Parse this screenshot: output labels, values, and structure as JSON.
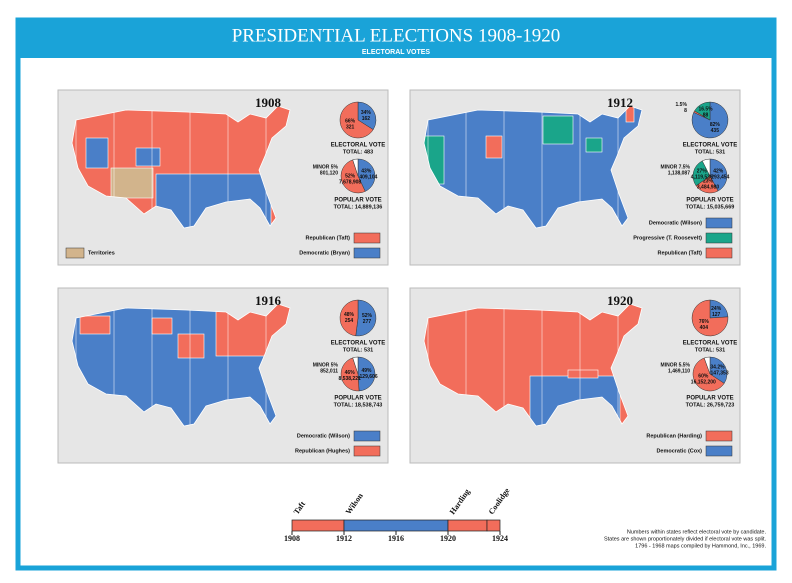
{
  "header": {
    "title": "PRESIDENTIAL ELECTIONS 1908-1920",
    "subtitle": "ELECTORAL VOTES"
  },
  "panels": [
    {
      "title": "1908",
      "electoral": {
        "label": "ELECTORAL VOTE",
        "total": "TOTAL: 483",
        "slices": [
          {
            "value": 34,
            "label": "34%",
            "count": "162",
            "color": "#4a7fc8"
          },
          {
            "value": 66,
            "label": "66%",
            "count": "321",
            "color": "#f26d5b"
          }
        ]
      },
      "popular": {
        "label": "POPULAR VOTE",
        "total": "TOTAL: 14,889,136",
        "slices": [
          {
            "value": 43,
            "label": "43%",
            "count": "6,409,104",
            "color": "#4a7fc8"
          },
          {
            "value": 52,
            "label": "52%",
            "count": "7,678,908",
            "color": "#f26d5b"
          },
          {
            "value": 5,
            "label": "MINOR 5%",
            "count": "801,120",
            "color": "#ffffff"
          }
        ]
      },
      "legend": [
        {
          "label": "Republican (Taft)",
          "color": "#f26d5b"
        },
        {
          "label": "Democratic (Bryan)",
          "color": "#4a7fc8"
        }
      ],
      "territories": {
        "label": "Territories",
        "color": "#d2b48c"
      }
    },
    {
      "title": "1912",
      "electoral": {
        "label": "ELECTORAL VOTE",
        "total": "TOTAL: 531",
        "slices": [
          {
            "value": 82,
            "label": "82%",
            "count": "435",
            "color": "#4a7fc8"
          },
          {
            "value": 1.5,
            "label": "1.5%",
            "count": "8",
            "color": "#f26d5b"
          },
          {
            "value": 16.5,
            "label": "16.5%",
            "count": "88",
            "color": "#1aa58a"
          }
        ]
      },
      "popular": {
        "label": "POPULAR VOTE",
        "total": "TOTAL: 15,035,669",
        "slices": [
          {
            "value": 42,
            "label": "42%",
            "count": "6,293,454",
            "color": "#4a7fc8"
          },
          {
            "value": 23,
            "label": "23%",
            "count": "3,484,980",
            "color": "#f26d5b"
          },
          {
            "value": 27,
            "label": "27%",
            "count": "4,119,538",
            "color": "#1aa58a"
          },
          {
            "value": 7.5,
            "label": "MINOR 7.5%",
            "count": "1,138,087",
            "color": "#ffffff"
          }
        ]
      },
      "legend": [
        {
          "label": "Democratic (Wilson)",
          "color": "#4a7fc8"
        },
        {
          "label": "Progressive (T. Roosevelt)",
          "color": "#1aa58a"
        },
        {
          "label": "Republican (Taft)",
          "color": "#f26d5b"
        }
      ]
    },
    {
      "title": "1916",
      "electoral": {
        "label": "ELECTORAL VOTE",
        "total": "TOTAL: 531",
        "slices": [
          {
            "value": 52,
            "label": "52%",
            "count": "277",
            "color": "#4a7fc8"
          },
          {
            "value": 48,
            "label": "48%",
            "count": "254",
            "color": "#f26d5b"
          }
        ]
      },
      "popular": {
        "label": "POPULAR VOTE",
        "total": "TOTAL: 18,538,743",
        "slices": [
          {
            "value": 49,
            "label": "49%",
            "count": "9,129,606",
            "color": "#4a7fc8"
          },
          {
            "value": 46,
            "label": "46%",
            "count": "8,538,221",
            "color": "#f26d5b"
          },
          {
            "value": 5,
            "label": "MINOR 5%",
            "count": "852,011",
            "color": "#ffffff"
          }
        ]
      },
      "legend": [
        {
          "label": "Democratic (Wilson)",
          "color": "#4a7fc8"
        },
        {
          "label": "Republican (Hughes)",
          "color": "#f26d5b"
        }
      ]
    },
    {
      "title": "1920",
      "electoral": {
        "label": "ELECTORAL VOTE",
        "total": "TOTAL: 531",
        "slices": [
          {
            "value": 24,
            "label": "24%",
            "count": "127",
            "color": "#4a7fc8"
          },
          {
            "value": 76,
            "label": "76%",
            "count": "404",
            "color": "#f26d5b"
          }
        ]
      },
      "popular": {
        "label": "POPULAR VOTE",
        "total": "TOTAL: 26,759,723",
        "slices": [
          {
            "value": 34.2,
            "label": "34.2%",
            "count": "9,147,353",
            "color": "#4a7fc8"
          },
          {
            "value": 60,
            "label": "60%",
            "count": "16,152,200",
            "color": "#f26d5b"
          },
          {
            "value": 5.5,
            "label": "MINOR 5.5%",
            "count": "1,469,110",
            "color": "#ffffff"
          }
        ]
      },
      "legend": [
        {
          "label": "Republican (Harding)",
          "color": "#f26d5b"
        },
        {
          "label": "Democratic (Cox)",
          "color": "#4a7fc8"
        }
      ]
    }
  ],
  "timeline": {
    "years": [
      1908,
      1912,
      1916,
      1920,
      1924
    ],
    "presidents": [
      {
        "name": "Taft",
        "start": 1908,
        "end": 1912,
        "color": "#f26d5b"
      },
      {
        "name": "Wilson",
        "start": 1912,
        "end": 1920,
        "color": "#4a7fc8"
      },
      {
        "name": "Harding",
        "start": 1920,
        "end": 1923,
        "color": "#f26d5b"
      },
      {
        "name": "Coolidge",
        "start": 1923,
        "end": 1924,
        "color": "#f26d5b"
      }
    ]
  },
  "footnote": [
    "Numbers within states reflect electoral vote by candidate.",
    "States are shown proportionately divided if electoral vote was split.",
    "1796 - 1968 maps compiled by Hammond, Inc., 1969."
  ]
}
